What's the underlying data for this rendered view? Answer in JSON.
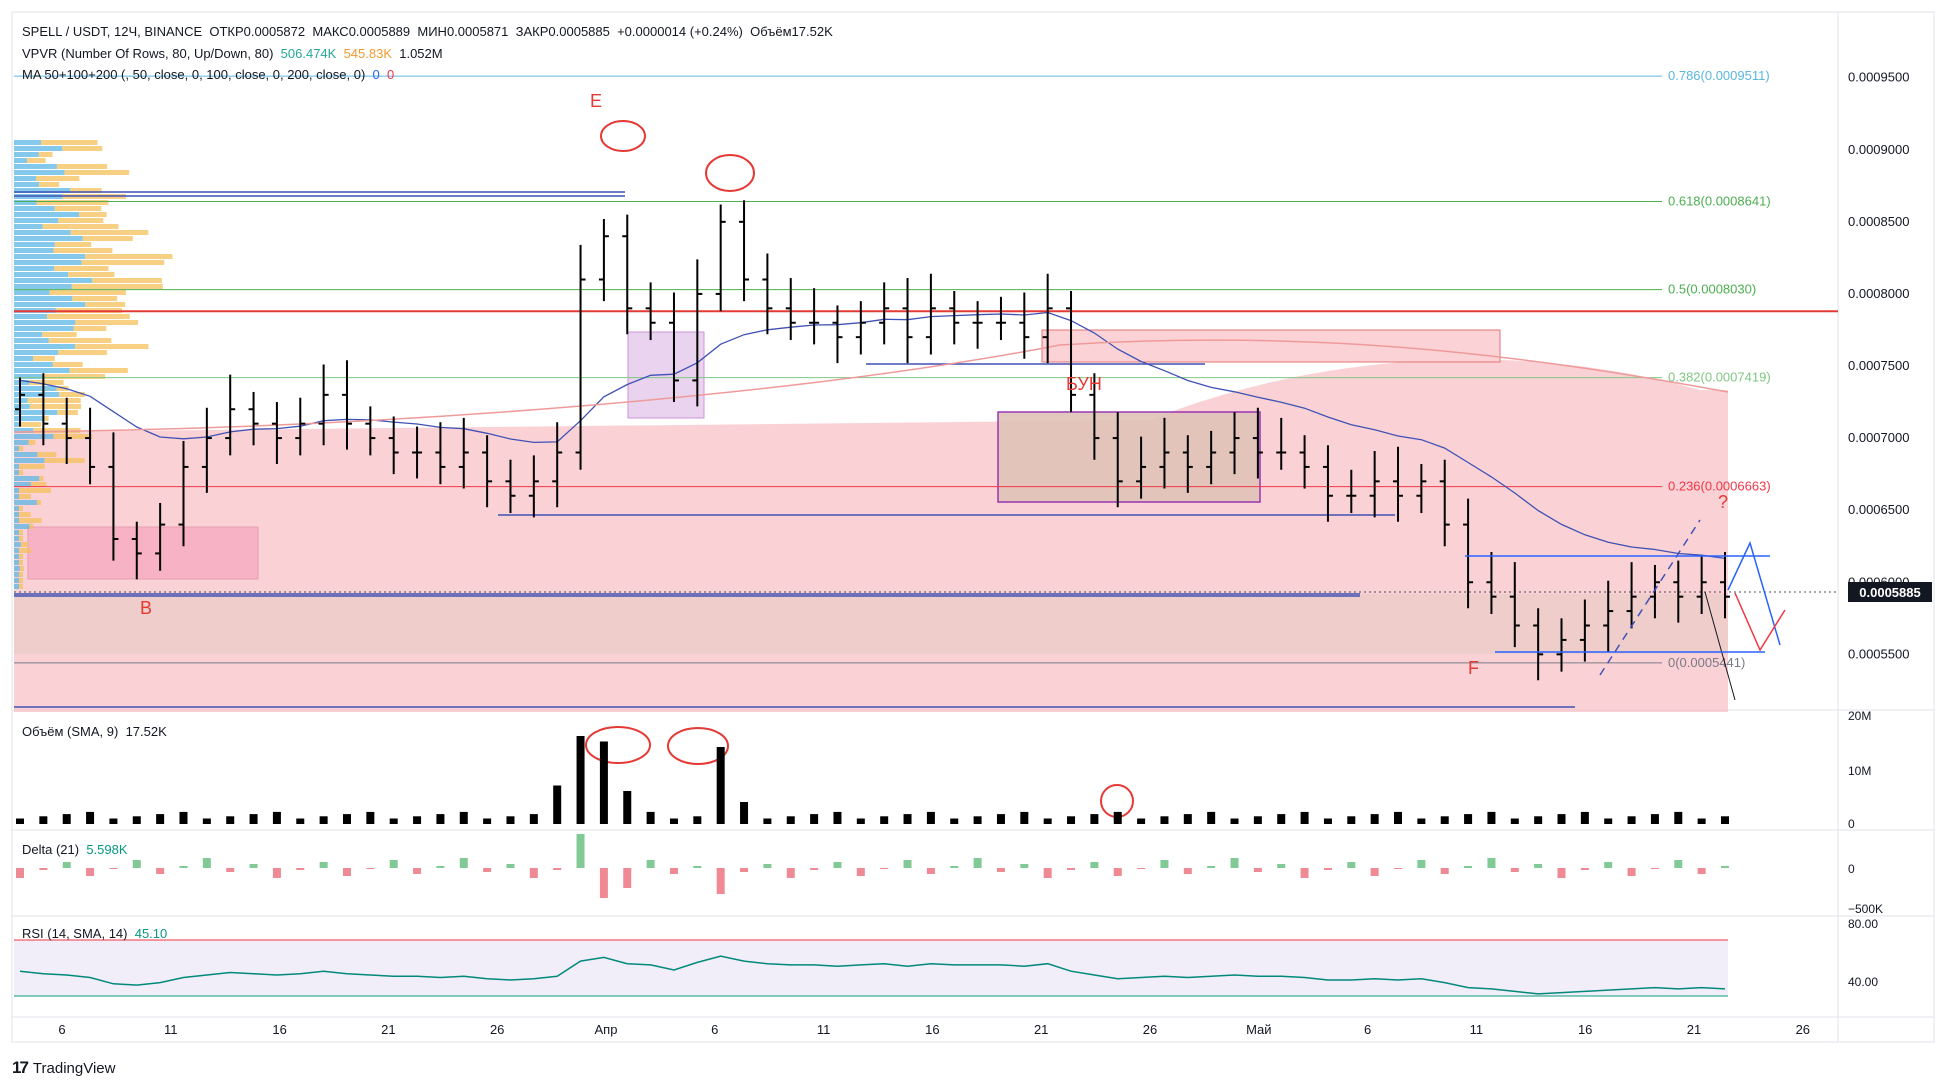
{
  "header": {
    "symbol_line": "SPELL / USDT, 12Ч, BINANCE",
    "open_label": "ОТКР",
    "open_value": "0.0005872",
    "high_label": "МАКС",
    "high_value": "0.0005889",
    "low_label": "МИН",
    "low_value": "0.0005871",
    "close_label": "ЗАКР",
    "close_value": "0.0005885",
    "change": "+0.0000014 (+0.24%)",
    "volume_label": "Объём",
    "volume_value": "17.52K"
  },
  "vpvr": {
    "label": "VPVR (Number Of Rows, 80, Up/Down, 80)",
    "up": "506.474K",
    "down": "545.83K",
    "total": "1.052M"
  },
  "ma": {
    "label": "MA 50+100+200 (, 50, close, 0, 100, close, 0, 200, close, 0)",
    "v1": "0",
    "v2": "0"
  },
  "volume_pane": {
    "label": "Объём (SMA, 9)",
    "value": "17.52K",
    "ticks": [
      "20M",
      "10M",
      "0"
    ]
  },
  "delta_pane": {
    "label": "Delta (21)",
    "value": "5.598K",
    "ticks": [
      "0",
      "−500K"
    ]
  },
  "rsi_pane": {
    "label": "RSI (14, SMA, 14)",
    "value": "45.10",
    "ticks": [
      "80.00",
      "40.00"
    ]
  },
  "price_axis": {
    "ticks": [
      "0.0009500",
      "0.0009000",
      "0.0008500",
      "0.0008000",
      "0.0007500",
      "0.0007000",
      "0.0006500",
      "0.0006000",
      "0.0005500"
    ],
    "current_price": "0.0005885"
  },
  "time_axis": {
    "labels": [
      "6",
      "11",
      "16",
      "21",
      "26",
      "Апр",
      "6",
      "11",
      "16",
      "21",
      "26",
      "Май",
      "6",
      "11",
      "16",
      "21",
      "26"
    ]
  },
  "fibonacci": [
    {
      "label": "0.786(0.0009511)",
      "color": "#5bb6e0"
    },
    {
      "label": "0.618(0.0008641)",
      "color": "#4caf50"
    },
    {
      "label": "0.5(0.0008030)",
      "color": "#4caf50"
    },
    {
      "label": "0.382(0.0007419)",
      "color": "#81c784"
    },
    {
      "label": "0.236(0.0006663)",
      "color": "#f23645"
    },
    {
      "label": "0(0.0005441)",
      "color": "#787b86"
    }
  ],
  "annotations": {
    "e": "E",
    "b": "B",
    "f": "F",
    "bun": "БУН",
    "question": "?"
  },
  "brand": "TradingView",
  "colors": {
    "up": "#089981",
    "down": "#f23645",
    "candle": "#000000",
    "ma": "#3f51b5",
    "resistance": "#e53935"
  },
  "chart_data": {
    "type": "candlestick",
    "title": "SPELL / USDT, 12Ч, BINANCE",
    "x_start": "2022-03-02",
    "x_end": "2022-05-27",
    "ylim": [
      0.00051,
      0.00099
    ],
    "close_series": [
      0.00073,
      0.00071,
      0.0007,
      0.00068,
      0.00063,
      0.00062,
      0.00064,
      0.00068,
      0.0007,
      0.00072,
      0.00071,
      0.0007,
      0.00071,
      0.00073,
      0.00071,
      0.0007,
      0.00069,
      0.00069,
      0.00068,
      0.00069,
      0.00067,
      0.00066,
      0.00067,
      0.00069,
      0.00081,
      0.00084,
      0.00079,
      0.00078,
      0.00074,
      0.0008,
      0.00085,
      0.00081,
      0.00079,
      0.00078,
      0.00078,
      0.00077,
      0.00078,
      0.00079,
      0.00077,
      0.00079,
      0.00078,
      0.00078,
      0.00078,
      0.00077,
      0.00079,
      0.00073,
      0.0007,
      0.00067,
      0.00068,
      0.00069,
      0.00068,
      0.00069,
      0.0007,
      0.00069,
      0.00069,
      0.00068,
      0.00066,
      0.00066,
      0.00067,
      0.00066,
      0.00067,
      0.00064,
      0.0006,
      0.00059,
      0.00057,
      0.00055,
      0.00056,
      0.00057,
      0.00058,
      0.00059,
      0.0006,
      0.00059,
      0.0006,
      0.00059
    ],
    "resistance_level": 0.000788,
    "volume_spikes": [
      "16M",
      "14M"
    ],
    "rsi_range": [
      30,
      70
    ]
  }
}
